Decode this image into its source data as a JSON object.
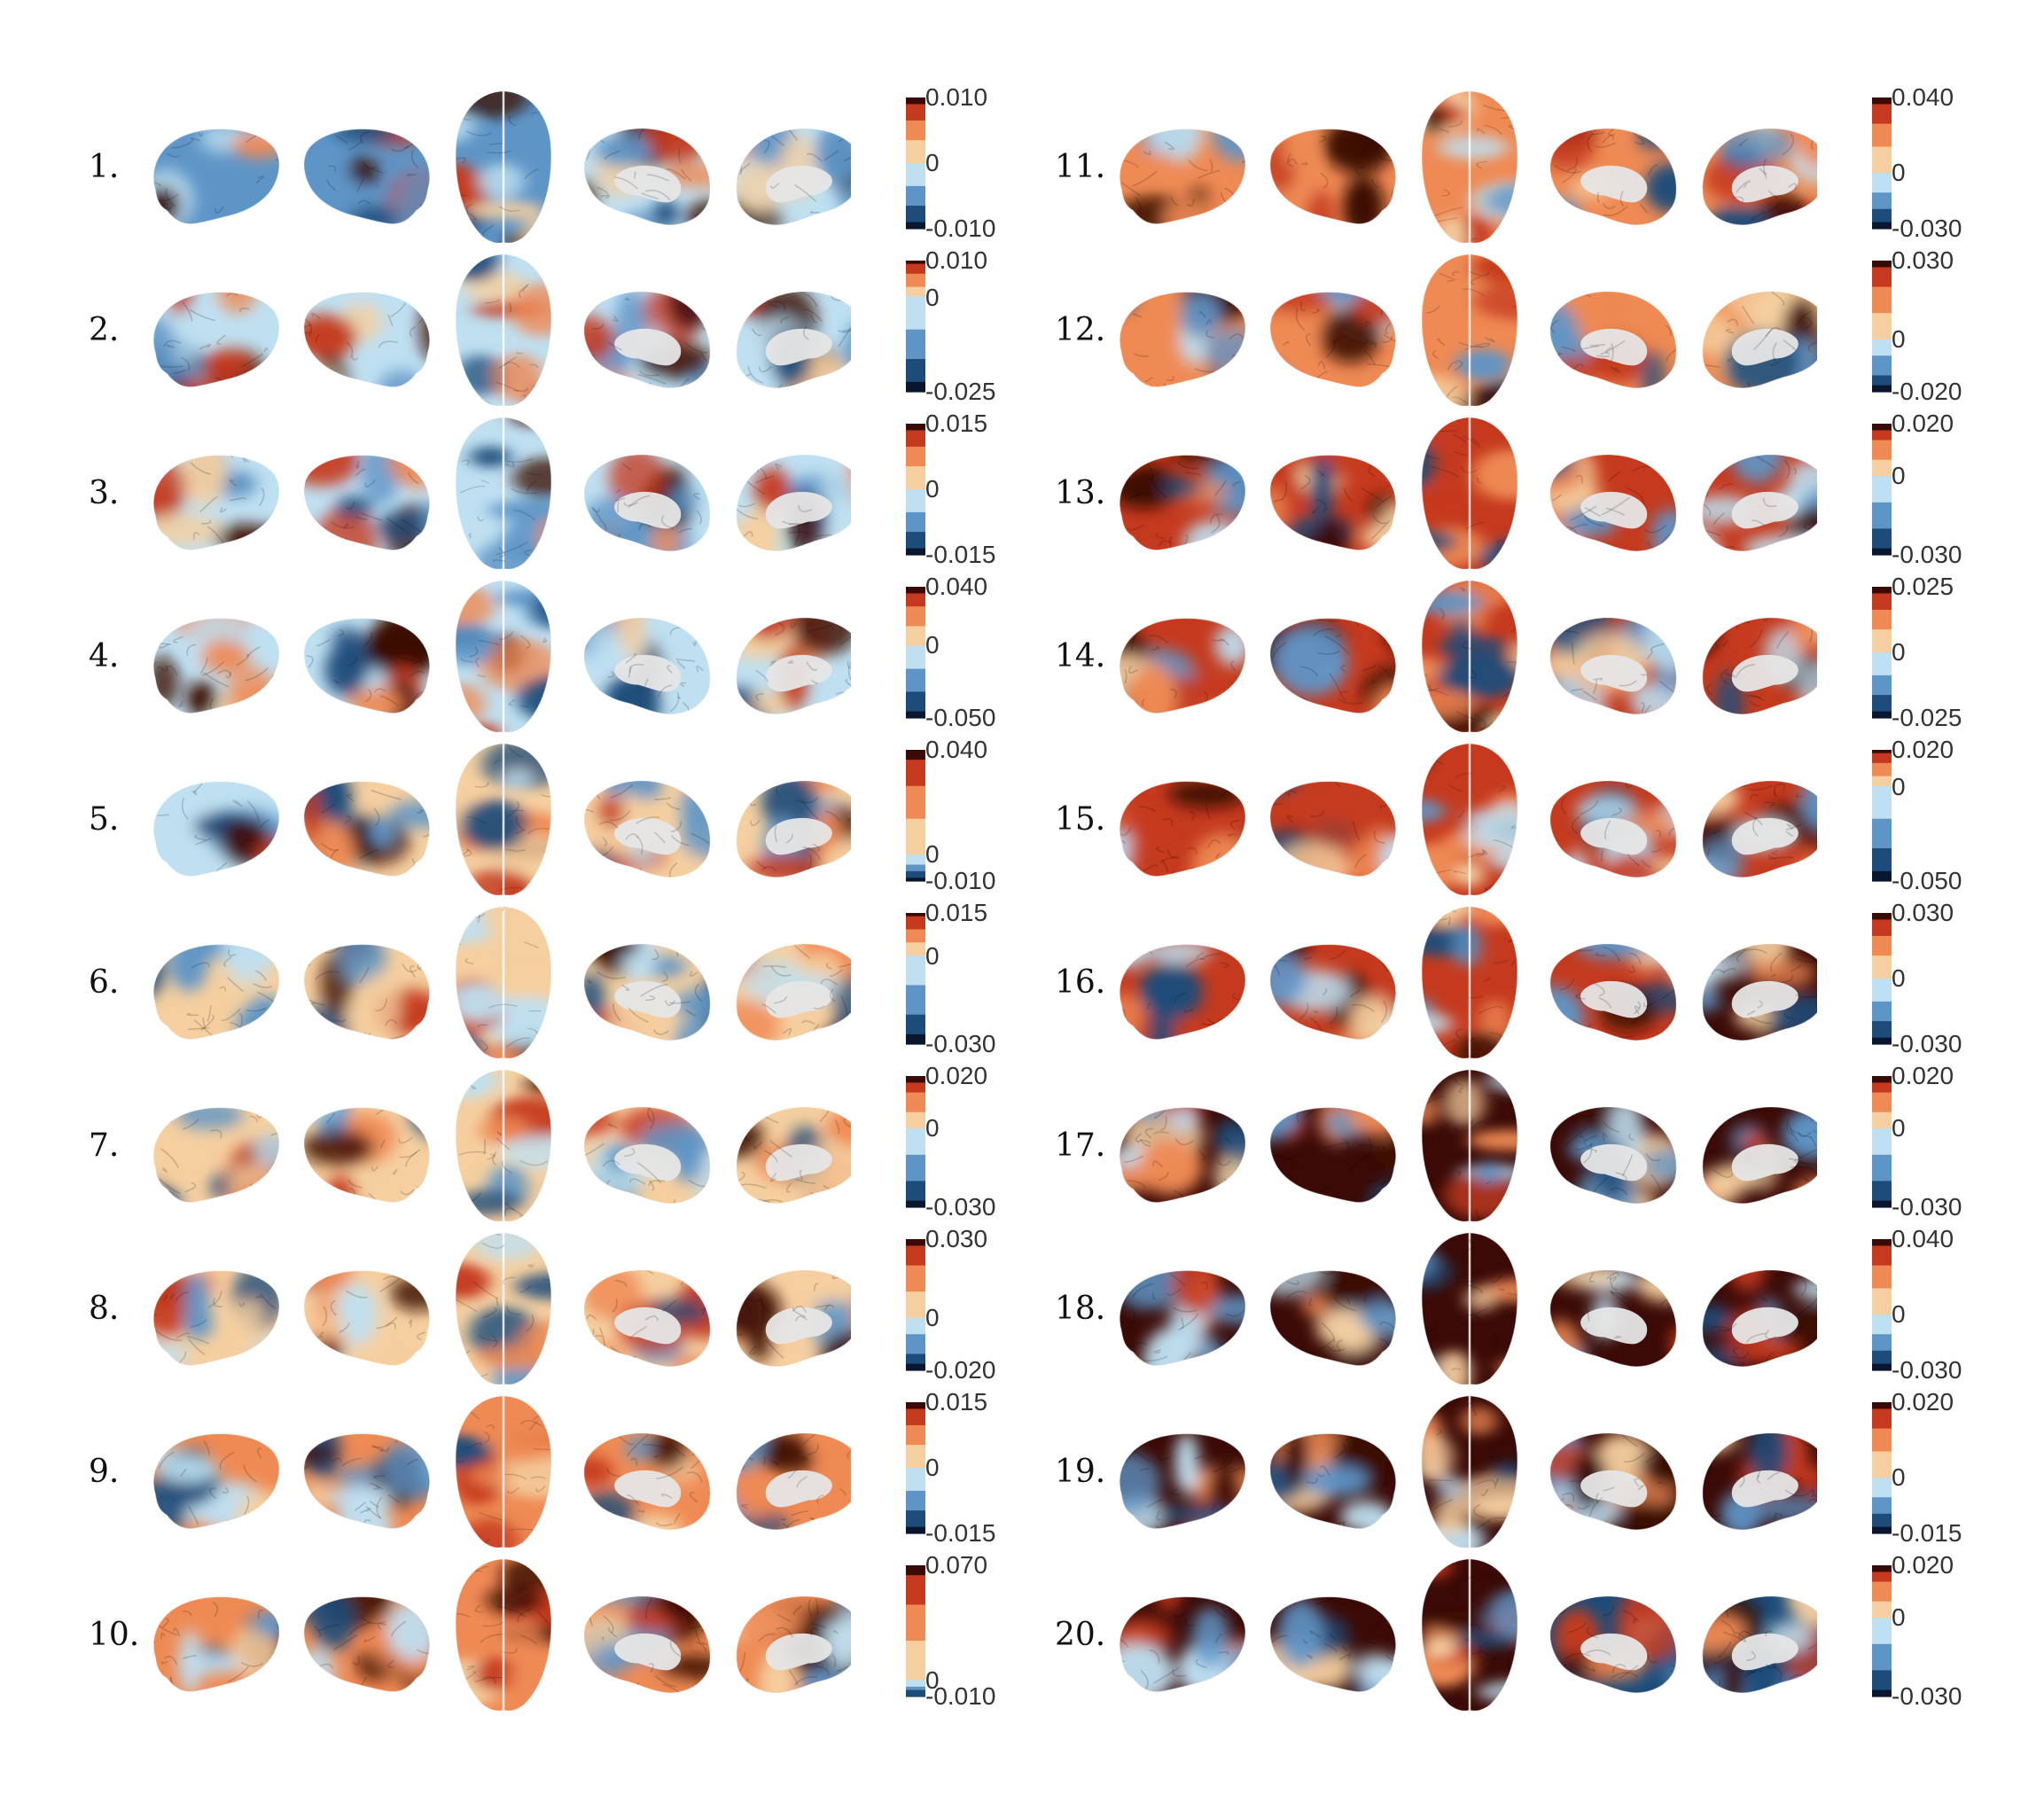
{
  "colors": {
    "dark_red": "#3b0a06",
    "red": "#c53a1e",
    "orange": "#ef8a54",
    "peach": "#f5cfa0",
    "light_blue": "#bfe0f1",
    "blue": "#5e95c7",
    "dark_blue": "#1c4c7a",
    "navy": "#08172e",
    "gray": "#e6e6e6"
  },
  "components": [
    {
      "label": "1.",
      "ticks": [
        "0.010",
        "0",
        "-0.010"
      ],
      "tick_values": [
        0.01,
        0,
        -0.01
      ],
      "vmax": 0.01,
      "vmin": -0.01
    },
    {
      "label": "2.",
      "ticks": [
        "0.010",
        "0",
        "-0.025"
      ],
      "tick_values": [
        0.01,
        0,
        -0.025
      ],
      "vmax": 0.01,
      "vmin": -0.025
    },
    {
      "label": "3.",
      "ticks": [
        "0.015",
        "0",
        "-0.015"
      ],
      "tick_values": [
        0.015,
        0,
        -0.015
      ],
      "vmax": 0.015,
      "vmin": -0.015
    },
    {
      "label": "4.",
      "ticks": [
        "0.040",
        "0",
        "-0.050"
      ],
      "tick_values": [
        0.04,
        0,
        -0.05
      ],
      "vmax": 0.04,
      "vmin": -0.05
    },
    {
      "label": "5.",
      "ticks": [
        "0.040",
        "0",
        "-0.010"
      ],
      "tick_values": [
        0.04,
        0,
        -0.01
      ],
      "vmax": 0.04,
      "vmin": -0.01
    },
    {
      "label": "6.",
      "ticks": [
        "0.015",
        "0",
        "-0.030"
      ],
      "tick_values": [
        0.015,
        0,
        -0.03
      ],
      "vmax": 0.015,
      "vmin": -0.03
    },
    {
      "label": "7.",
      "ticks": [
        "0.020",
        "0",
        "-0.030"
      ],
      "tick_values": [
        0.02,
        0,
        -0.03
      ],
      "vmax": 0.02,
      "vmin": -0.03
    },
    {
      "label": "8.",
      "ticks": [
        "0.030",
        "0",
        "-0.020"
      ],
      "tick_values": [
        0.03,
        0,
        -0.02
      ],
      "vmax": 0.03,
      "vmin": -0.02
    },
    {
      "label": "9.",
      "ticks": [
        "0.015",
        "0",
        "-0.015"
      ],
      "tick_values": [
        0.015,
        0,
        -0.015
      ],
      "vmax": 0.015,
      "vmin": -0.015
    },
    {
      "label": "10.",
      "ticks": [
        "0.070",
        "0",
        "-0.010"
      ],
      "tick_values": [
        0.07,
        0,
        -0.01
      ],
      "vmax": 0.07,
      "vmin": -0.01
    },
    {
      "label": "11.",
      "ticks": [
        "0.040",
        "0",
        "-0.030"
      ],
      "tick_values": [
        0.04,
        0,
        -0.03
      ],
      "vmax": 0.04,
      "vmin": -0.03
    },
    {
      "label": "12.",
      "ticks": [
        "0.030",
        "0",
        "-0.020"
      ],
      "tick_values": [
        0.03,
        0,
        -0.02
      ],
      "vmax": 0.03,
      "vmin": -0.02
    },
    {
      "label": "13.",
      "ticks": [
        "0.020",
        "0",
        "-0.030"
      ],
      "tick_values": [
        0.02,
        0,
        -0.03
      ],
      "vmax": 0.02,
      "vmin": -0.03
    },
    {
      "label": "14.",
      "ticks": [
        "0.025",
        "0",
        "-0.025"
      ],
      "tick_values": [
        0.025,
        0,
        -0.025
      ],
      "vmax": 0.025,
      "vmin": -0.025
    },
    {
      "label": "15.",
      "ticks": [
        "0.020",
        "0",
        "-0.050"
      ],
      "tick_values": [
        0.02,
        0,
        -0.05
      ],
      "vmax": 0.02,
      "vmin": -0.05
    },
    {
      "label": "16.",
      "ticks": [
        "0.030",
        "0",
        "-0.030"
      ],
      "tick_values": [
        0.03,
        0,
        -0.03
      ],
      "vmax": 0.03,
      "vmin": -0.03
    },
    {
      "label": "17.",
      "ticks": [
        "0.020",
        "0",
        "-0.030"
      ],
      "tick_values": [
        0.02,
        0,
        -0.03
      ],
      "vmax": 0.02,
      "vmin": -0.03
    },
    {
      "label": "18.",
      "ticks": [
        "0.040",
        "0",
        "-0.030"
      ],
      "tick_values": [
        0.04,
        0,
        -0.03
      ],
      "vmax": 0.04,
      "vmin": -0.03
    },
    {
      "label": "19.",
      "ticks": [
        "0.020",
        "0",
        "-0.015"
      ],
      "tick_values": [
        0.02,
        0,
        -0.015
      ],
      "vmax": 0.02,
      "vmin": -0.015
    },
    {
      "label": "20.",
      "ticks": [
        "0.020",
        "0",
        "-0.030"
      ],
      "tick_values": [
        0.02,
        0,
        -0.03
      ],
      "vmax": 0.02,
      "vmin": -0.03
    }
  ],
  "view_order": [
    "lateral-left",
    "lateral-right",
    "dorsal",
    "medial-left",
    "medial-right"
  ]
}
